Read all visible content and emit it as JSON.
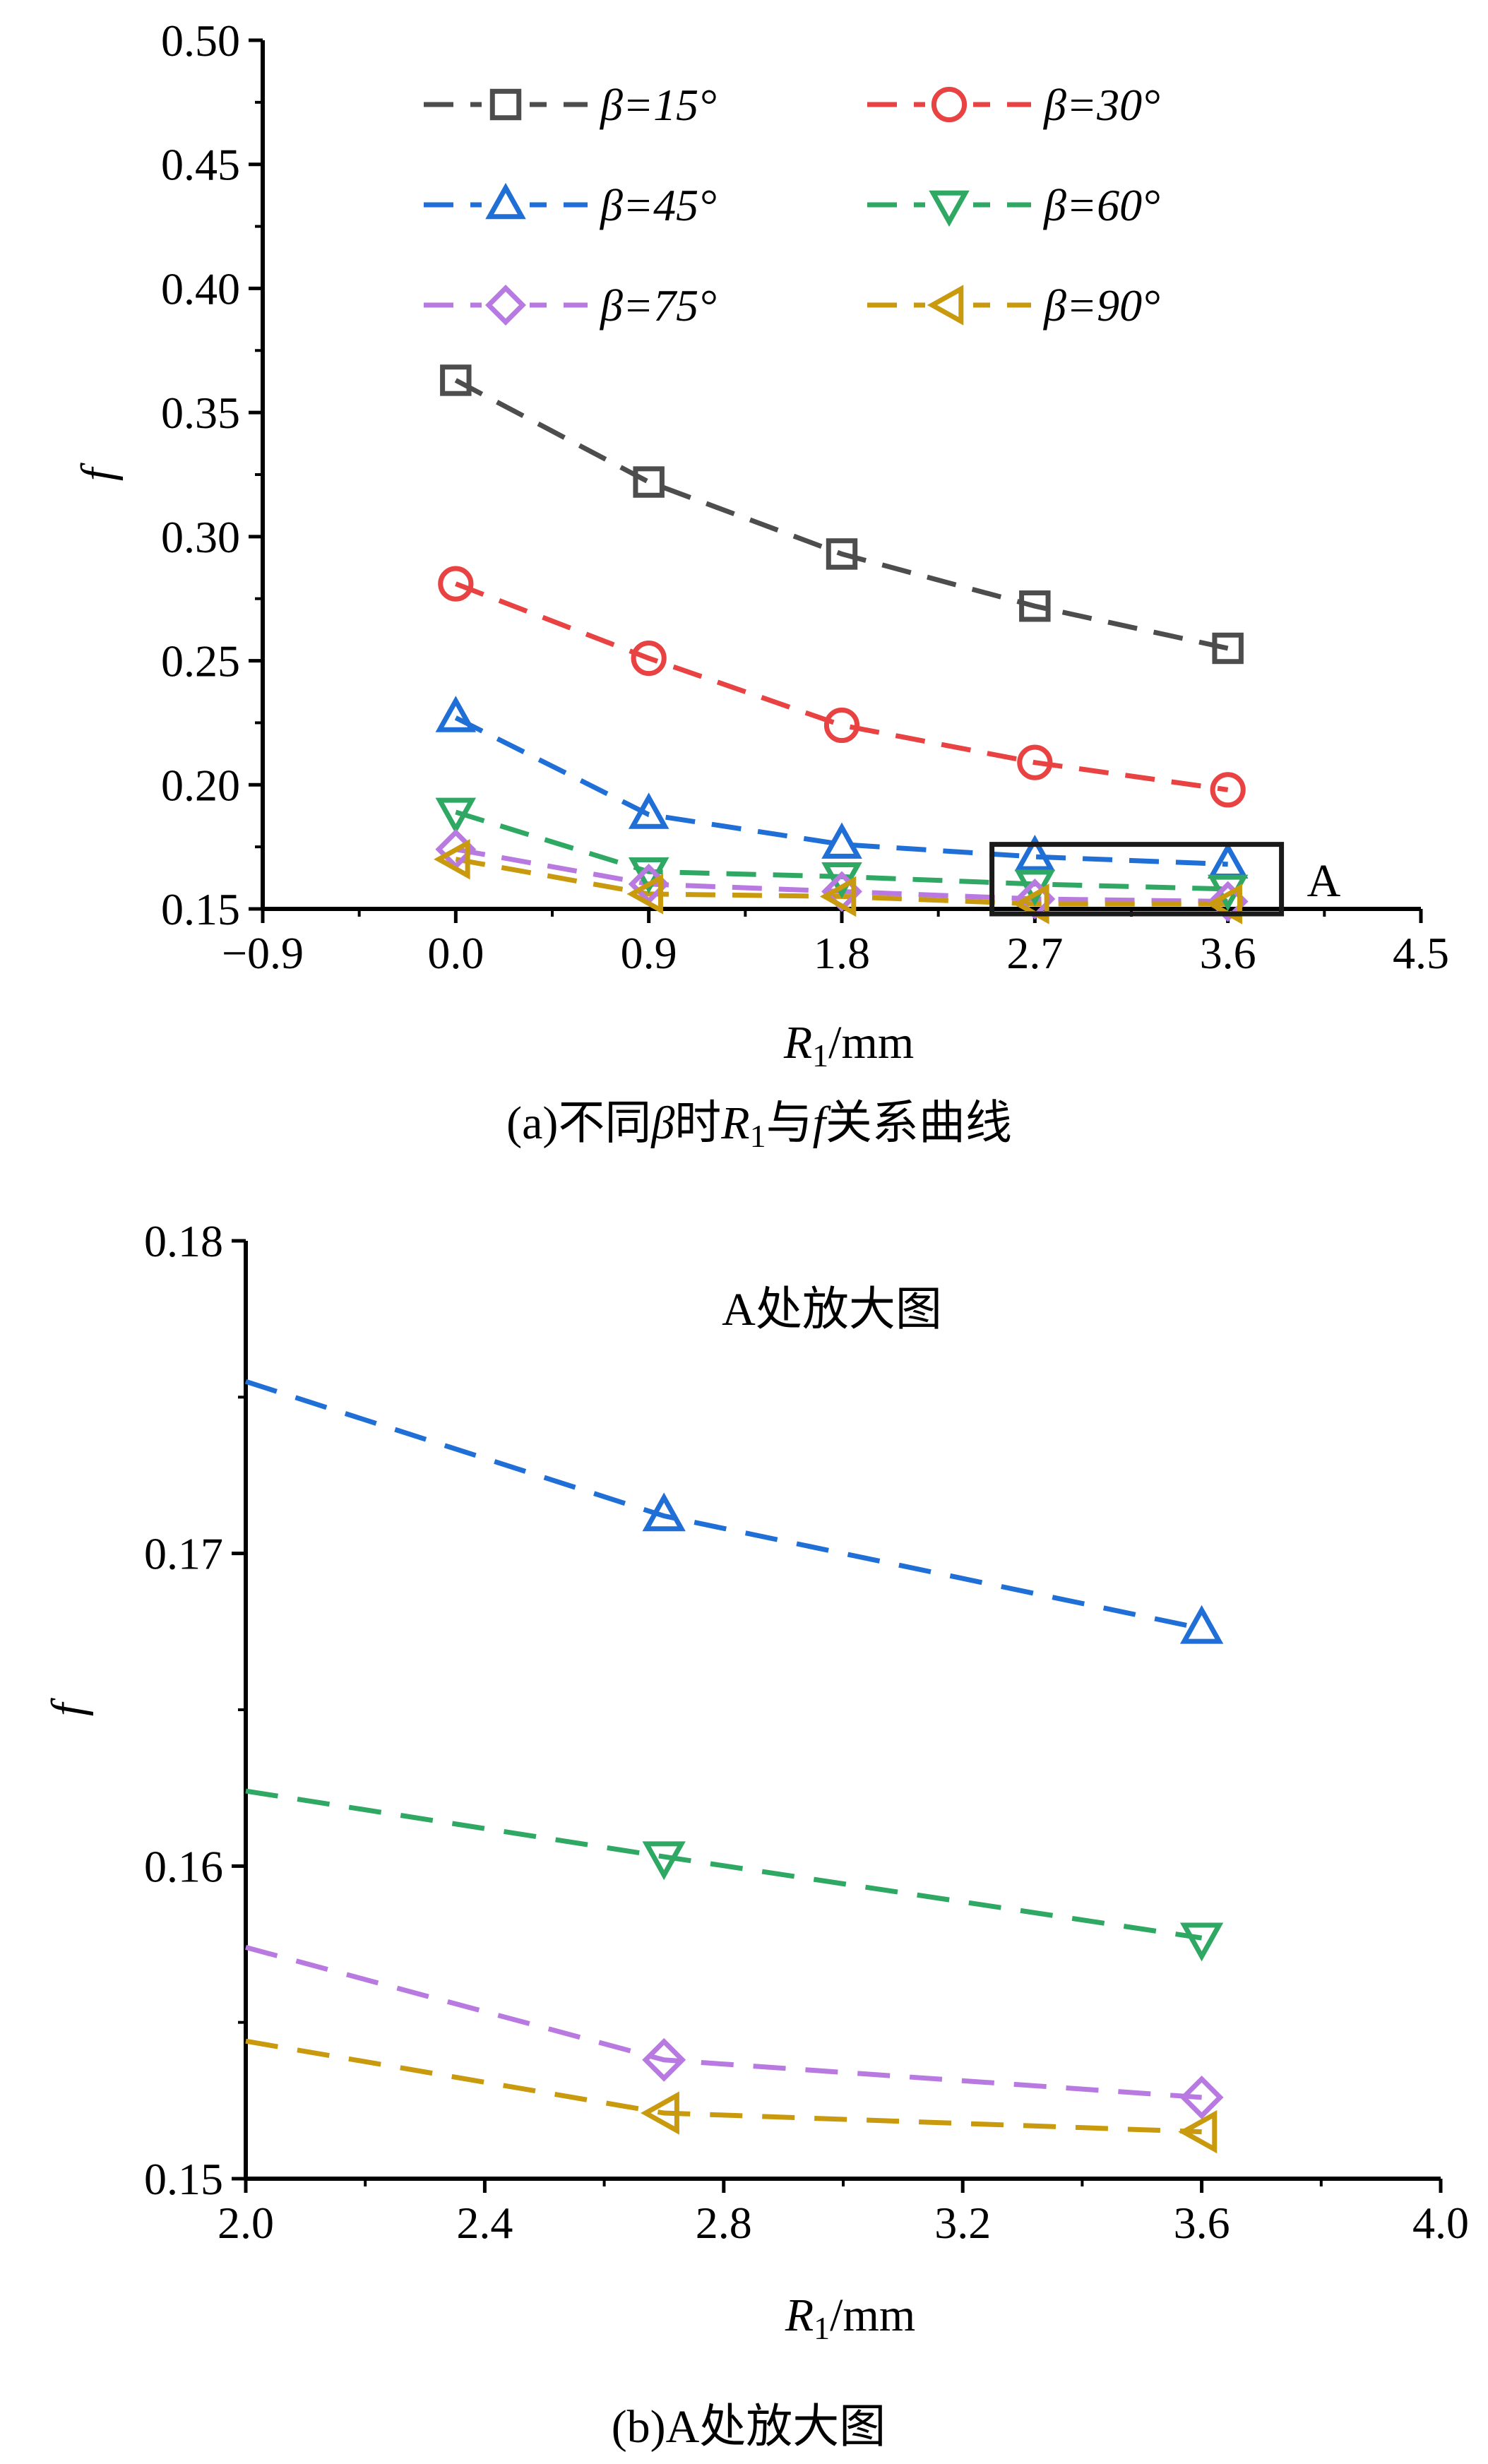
{
  "colors": {
    "beta15": "#4d4d4d",
    "beta30": "#e84242",
    "beta45": "#1f6fd6",
    "beta60": "#2fa863",
    "beta75": "#b87ae0",
    "beta90": "#c99a0e",
    "axis": "#000000",
    "box": "#1a1a1a"
  },
  "chart_data": [
    {
      "type": "line",
      "caption": {
        "pre": "(a)不同",
        "beta": "β",
        "mid1": "时",
        "R": "R",
        "sub": "1",
        "mid2": "与",
        "f": "f",
        "post": "关系曲线"
      },
      "xlabel": {
        "R": "R",
        "sub": "1",
        "unit": "/mm"
      },
      "ylabel": "f",
      "xlim": [
        -0.9,
        4.5
      ],
      "ylim": [
        0.15,
        0.5
      ],
      "xticks": [
        "−0.9",
        "0.0",
        "0.9",
        "1.8",
        "2.7",
        "3.6",
        "4.5"
      ],
      "yticks": [
        "0.15",
        "0.20",
        "0.25",
        "0.30",
        "0.35",
        "0.40",
        "0.45",
        "0.50"
      ],
      "x": [
        0.0,
        0.9,
        1.8,
        2.7,
        3.6
      ],
      "series": [
        {
          "name": "β=15°",
          "marker": "square",
          "color_key": "beta15",
          "values": [
            0.363,
            0.322,
            0.293,
            0.272,
            0.255
          ]
        },
        {
          "name": "β=30°",
          "marker": "circle",
          "color_key": "beta30",
          "values": [
            0.281,
            0.251,
            0.224,
            0.209,
            0.198
          ]
        },
        {
          "name": "β=45°",
          "marker": "triangle-up",
          "color_key": "beta45",
          "values": [
            0.227,
            0.188,
            0.176,
            0.171,
            0.168
          ]
        },
        {
          "name": "β=60°",
          "marker": "triangle-down",
          "color_key": "beta60",
          "values": [
            0.189,
            0.165,
            0.163,
            0.16,
            0.158
          ]
        },
        {
          "name": "β=75°",
          "marker": "diamond",
          "color_key": "beta75",
          "values": [
            0.174,
            0.16,
            0.157,
            0.154,
            0.153
          ]
        },
        {
          "name": "β=90°",
          "marker": "triangle-left",
          "color_key": "beta90",
          "values": [
            0.17,
            0.156,
            0.155,
            0.152,
            0.152
          ]
        }
      ],
      "legend": {
        "placement": "top"
      },
      "annotation": {
        "label": "A",
        "x_range": [
          2.5,
          3.85
        ],
        "y_range": [
          0.148,
          0.176
        ]
      }
    },
    {
      "type": "line",
      "title": "A处放大图",
      "caption": {
        "text": "(b)A处放大图"
      },
      "xlabel": {
        "R": "R",
        "sub": "1",
        "unit": "/mm"
      },
      "ylabel": "f",
      "xlim": [
        2.0,
        4.0
      ],
      "ylim": [
        0.15,
        0.18
      ],
      "xticks": [
        "2.0",
        "2.4",
        "2.8",
        "3.2",
        "3.6",
        "4.0"
      ],
      "yticks": [
        "0.15",
        "0.16",
        "0.17",
        "0.18"
      ],
      "x": [
        2.7,
        3.6
      ],
      "series": [
        {
          "marker": "triangle-up",
          "color_key": "beta45",
          "values": [
            0.1712,
            0.1676
          ],
          "line_start": [
            2.0,
            0.1755
          ]
        },
        {
          "marker": "triangle-down",
          "color_key": "beta60",
          "values": [
            0.1603,
            0.1577
          ],
          "line_start": [
            2.0,
            0.1624
          ]
        },
        {
          "marker": "diamond",
          "color_key": "beta75",
          "values": [
            0.1538,
            0.1526
          ],
          "line_start": [
            2.0,
            0.1574
          ]
        },
        {
          "marker": "triangle-left",
          "color_key": "beta90",
          "values": [
            0.1521,
            0.1515
          ],
          "line_start": [
            2.0,
            0.1544
          ]
        }
      ]
    }
  ]
}
